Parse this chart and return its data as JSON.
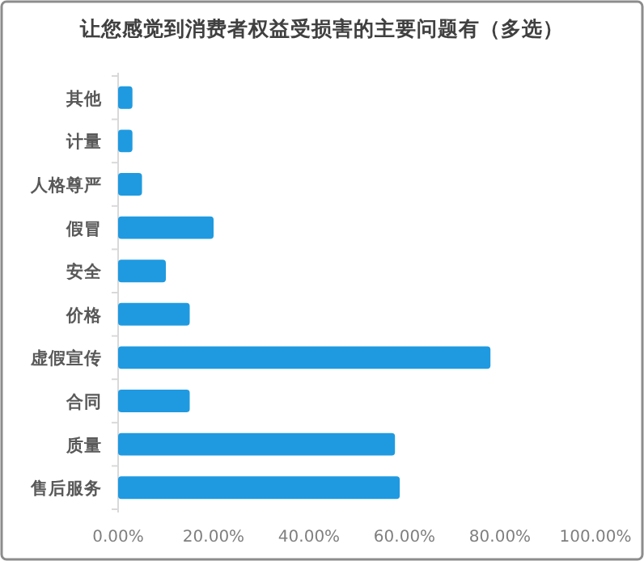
{
  "chart_data": {
    "type": "bar",
    "orientation": "horizontal",
    "title": "让您感觉到消费者权益受损害的主要问题有（多选）",
    "categories": [
      "其他",
      "计量",
      "人格尊严",
      "假冒",
      "安全",
      "价格",
      "虚假宣传",
      "合同",
      "质量",
      "售后服务"
    ],
    "values": [
      3,
      3,
      5,
      20,
      10,
      15,
      78,
      15,
      58,
      59
    ],
    "color": "#1f9ae0",
    "xlim": [
      0,
      100
    ],
    "xticks": [
      {
        "value": 0,
        "label": "0.00%"
      },
      {
        "value": 20,
        "label": "20.00%"
      },
      {
        "value": 40,
        "label": "40.00%"
      },
      {
        "value": 60,
        "label": "60.00%"
      },
      {
        "value": 80,
        "label": "80.00%"
      },
      {
        "value": 100,
        "label": "100.00%"
      }
    ]
  }
}
